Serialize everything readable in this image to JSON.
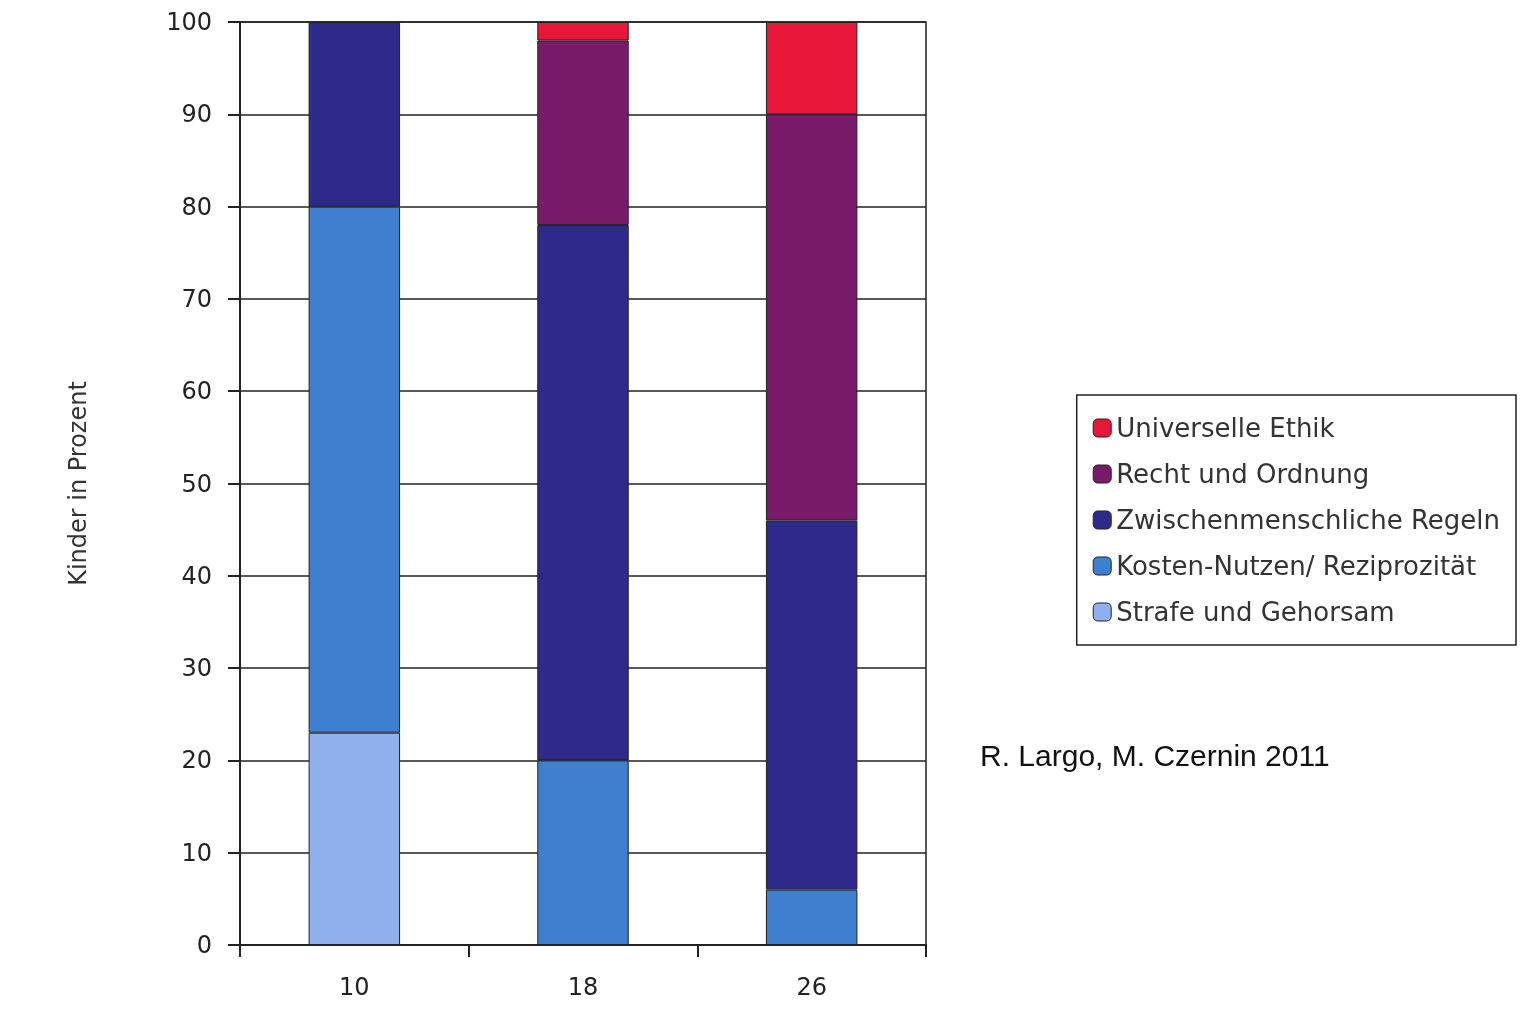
{
  "chart_data": {
    "type": "bar",
    "stacked": true,
    "ylabel": "Kinder in Prozent",
    "categories": [
      "10",
      "18",
      "26"
    ],
    "series": [
      {
        "name": "Strafe und Gehorsam",
        "color": "#8fb0ec",
        "values": [
          23,
          0,
          0
        ]
      },
      {
        "name": "Kosten-Nutzen/ Reziprozität",
        "color": "#3f7fd0",
        "values": [
          57,
          20,
          6
        ]
      },
      {
        "name": "Zwischenmenschliche Regeln",
        "color": "#2e2a8c",
        "values": [
          20,
          58,
          40
        ]
      },
      {
        "name": "Recht und Ordnung",
        "color": "#7a1a6a",
        "values": [
          0,
          20,
          44
        ]
      },
      {
        "name": "Universelle Ethik",
        "color": "#e8173a",
        "values": [
          0,
          2,
          10
        ]
      }
    ],
    "ylim": [
      0,
      100
    ],
    "yticks": [
      0,
      10,
      20,
      30,
      40,
      50,
      60,
      70,
      80,
      90,
      100
    ],
    "grid": "y",
    "legend": "right",
    "annotations": [
      "R. Largo, M. Czernin 2011"
    ]
  }
}
